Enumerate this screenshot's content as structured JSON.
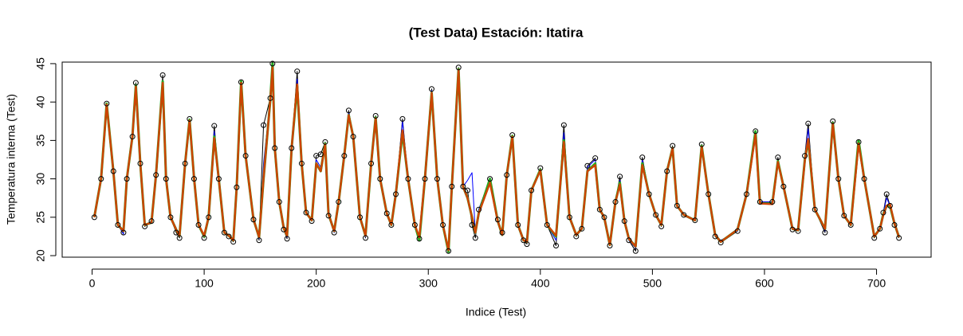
{
  "chart_data": {
    "type": "line",
    "title": "(Test Data) Estación: Itatira",
    "x_label": "Indice (Test)",
    "y_label": "Temperatura interna (Test)",
    "xlim": [
      -26.7,
      748.7
    ],
    "ylim": [
      19.8,
      45.2
    ],
    "xticks": [
      0,
      100,
      200,
      300,
      400,
      500,
      600,
      700
    ],
    "yticks": [
      20,
      25,
      30,
      35,
      40,
      45
    ],
    "x": [
      2,
      8,
      13,
      19,
      23,
      28,
      31,
      36,
      39,
      43,
      47,
      53,
      57,
      63,
      66,
      70,
      75,
      78,
      83,
      87,
      91,
      95,
      100,
      104,
      109,
      113,
      118,
      122,
      126,
      129,
      133,
      137,
      144,
      149,
      153,
      159,
      161,
      163,
      167,
      171,
      174,
      178,
      183,
      187,
      191,
      196,
      200,
      204,
      208,
      211,
      216,
      220,
      225,
      229,
      233,
      239,
      244,
      249,
      253,
      257,
      263,
      267,
      271,
      277,
      282,
      288,
      292,
      297,
      303,
      308,
      313,
      318,
      321,
      327,
      331,
      335,
      339,
      342,
      345,
      355,
      362,
      366,
      370,
      375,
      380,
      385,
      388,
      392,
      400,
      406,
      414,
      421,
      426,
      432,
      437,
      442,
      449,
      453,
      457,
      462,
      467,
      471,
      475,
      479,
      485,
      491,
      497,
      503,
      508,
      513,
      518,
      522,
      528,
      538,
      544,
      550,
      556,
      561,
      576,
      584,
      592,
      596,
      607,
      612,
      617,
      625,
      630,
      636,
      639,
      645,
      654,
      661,
      666,
      671,
      677,
      684,
      689,
      698,
      703,
      706,
      709,
      712,
      716,
      720
    ],
    "series": [
      {
        "color": "#000000",
        "markers": true,
        "values": [
          25,
          30,
          39.8,
          31,
          24,
          23,
          30,
          35.5,
          42.5,
          32,
          23.8,
          24.5,
          30.5,
          43.5,
          30,
          25,
          23,
          22.3,
          32,
          37.8,
          30,
          24,
          22.3,
          25,
          36.9,
          30,
          23,
          22.5,
          21.8,
          28.9,
          42.6,
          33,
          24.7,
          22,
          37,
          40.5,
          45,
          34,
          27,
          23.4,
          22.2,
          34,
          44,
          32,
          25.6,
          24.5,
          33,
          33.2,
          34.8,
          25.2,
          23,
          27,
          33,
          38.9,
          35.5,
          25,
          22.3,
          32,
          38.2,
          30,
          25.5,
          24,
          28,
          37.8,
          30,
          24,
          22.2,
          30,
          41.7,
          30,
          24,
          20.6,
          29,
          44.5,
          29,
          28.5,
          24,
          22.3,
          26,
          30,
          24.7,
          23,
          30.5,
          35.7,
          24,
          22,
          21.5,
          28.5,
          31.4,
          24,
          21.3,
          37,
          25,
          22.5,
          23.5,
          31.7,
          32.7,
          26,
          25,
          21.3,
          27,
          30.3,
          24.5,
          22,
          20.6,
          32.8,
          28,
          25.3,
          23.8,
          31,
          34.3,
          26.5,
          25.3,
          24.6,
          34.5,
          28,
          22.5,
          21.7,
          23.2,
          28,
          36.2,
          27,
          27,
          32.8,
          29,
          23.4,
          23.2,
          33,
          37.2,
          26,
          23,
          37.5,
          30,
          25.2,
          24,
          34.8,
          30,
          22.3,
          23.5,
          25.6,
          28,
          26.5,
          24,
          22.3
        ]
      },
      {
        "color": "#0000ff",
        "values": [
          25,
          30,
          39.6,
          31,
          24,
          22.8,
          30,
          35.5,
          42.3,
          32,
          24,
          24.5,
          30.5,
          42.8,
          30,
          25,
          23.2,
          22.5,
          32,
          37.5,
          30,
          24,
          22.5,
          25,
          36.2,
          30,
          23,
          22.6,
          22,
          28.9,
          42.4,
          33,
          24.7,
          22.2,
          32,
          40.3,
          42.5,
          34,
          27,
          23.5,
          22.4,
          34,
          43,
          32,
          25.6,
          24.5,
          32.5,
          31.5,
          34.6,
          25.2,
          23,
          27,
          33,
          38.6,
          35.5,
          25,
          22.4,
          32,
          38,
          30,
          25.5,
          24,
          28,
          37.5,
          30,
          24,
          22.4,
          30,
          41.5,
          30,
          24,
          20.8,
          29,
          44.3,
          29,
          29.8,
          30.8,
          23,
          26,
          30,
          24.5,
          23,
          30.5,
          35.5,
          24,
          22,
          21.7,
          28.5,
          31.2,
          24,
          22,
          36,
          25,
          22.6,
          23.5,
          31.5,
          32.5,
          26,
          25,
          21.5,
          27,
          29.8,
          24.5,
          22,
          21,
          32.5,
          28,
          25.3,
          24,
          31,
          34,
          26.5,
          25.3,
          24.6,
          34.3,
          28,
          22.5,
          22,
          23.2,
          28,
          36,
          27,
          27,
          32.5,
          29,
          23.4,
          23.3,
          32.8,
          36.5,
          26,
          23.2,
          37.3,
          30,
          25.2,
          24,
          34.5,
          30,
          22.5,
          23.5,
          25.6,
          27.5,
          26.5,
          24,
          22.4
        ]
      },
      {
        "color": "#22aa22",
        "width": 3,
        "values": [
          25,
          30,
          39.8,
          31,
          24,
          23.2,
          30,
          35.5,
          42.2,
          32,
          24,
          24.3,
          30.5,
          42.7,
          30,
          25,
          23.4,
          22.6,
          32,
          37.7,
          30,
          24,
          22.5,
          25,
          35.5,
          30,
          23,
          22.6,
          22,
          28.9,
          42.7,
          33,
          24.7,
          22.4,
          30,
          40.2,
          45,
          34,
          27,
          23.6,
          22.6,
          34,
          42,
          32,
          25.6,
          24.6,
          32,
          31,
          34.6,
          25.4,
          23.2,
          27,
          33,
          38.3,
          35.5,
          25,
          22.6,
          32,
          38,
          30,
          25.5,
          24,
          28,
          36,
          30,
          24,
          22,
          30,
          41.2,
          30,
          24,
          20.5,
          29,
          44.3,
          29,
          27.5,
          25,
          23,
          25.5,
          30,
          24.5,
          22.7,
          30.5,
          35.6,
          24,
          22,
          21.8,
          28.5,
          31.2,
          24,
          22.5,
          35,
          25,
          22.7,
          23.5,
          31,
          32,
          26,
          25,
          21.4,
          27,
          29.5,
          24.5,
          22.2,
          21.2,
          32,
          28,
          25.3,
          24,
          31,
          34,
          26.5,
          25.3,
          24.6,
          34.3,
          28,
          22.7,
          21.8,
          23.4,
          28,
          36.2,
          26.8,
          26.8,
          32.3,
          29,
          23.5,
          23.3,
          32.5,
          35,
          26,
          23.5,
          37.3,
          30,
          25.2,
          24,
          35,
          30,
          22.5,
          23.5,
          25.4,
          26.5,
          26.5,
          24.2,
          22.4
        ]
      },
      {
        "color": "#cc4400",
        "width": 2.5,
        "values": [
          25,
          30,
          39.7,
          31,
          24,
          23.2,
          30,
          35.5,
          42,
          32,
          24,
          24.3,
          30.5,
          42.5,
          30,
          25,
          23.4,
          22.6,
          32,
          37.6,
          30,
          24,
          22.6,
          25,
          35.3,
          30,
          23,
          22.6,
          22,
          28.9,
          42.5,
          33,
          24.7,
          22.4,
          30,
          40.2,
          44.5,
          34,
          27,
          23.6,
          22.6,
          34,
          42.3,
          32,
          25.6,
          24.6,
          32,
          31,
          34.5,
          25.4,
          23.2,
          27,
          33,
          38.3,
          35.5,
          25,
          22.6,
          32,
          37.9,
          30,
          25.5,
          24,
          28,
          36.3,
          30,
          24,
          22.4,
          30,
          41.2,
          30,
          24,
          20.7,
          29,
          44.2,
          29,
          27.5,
          25,
          23,
          25.5,
          29.5,
          24.5,
          22.7,
          30.5,
          35.5,
          24,
          22,
          21.8,
          28.5,
          31.1,
          24,
          22.6,
          34.8,
          25,
          22.7,
          23.5,
          31,
          31.8,
          26,
          25,
          21.4,
          27,
          29.3,
          24.5,
          22.2,
          21.2,
          31.8,
          28,
          25.3,
          24,
          31,
          34,
          26.5,
          25.3,
          24.6,
          34.2,
          28,
          22.7,
          21.8,
          23.4,
          28,
          35.8,
          26.8,
          26.7,
          32.2,
          29,
          23.5,
          23.3,
          32.4,
          35.2,
          26,
          23.5,
          37.2,
          30,
          25.2,
          24,
          34.6,
          30,
          22.5,
          23.5,
          25.3,
          26.5,
          26.7,
          24.2,
          22.4
        ]
      }
    ]
  }
}
